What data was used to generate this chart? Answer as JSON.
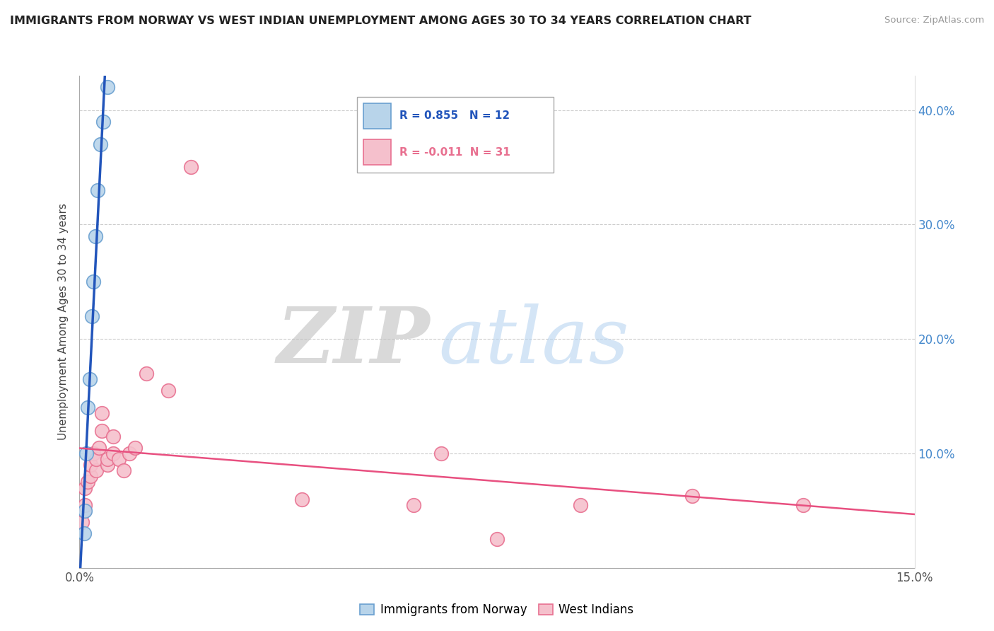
{
  "title": "IMMIGRANTS FROM NORWAY VS WEST INDIAN UNEMPLOYMENT AMONG AGES 30 TO 34 YEARS CORRELATION CHART",
  "source": "Source: ZipAtlas.com",
  "ylabel": "Unemployment Among Ages 30 to 34 years",
  "xlim": [
    0.0,
    0.15
  ],
  "ylim": [
    0.0,
    0.43
  ],
  "xticks": [
    0.0,
    0.05,
    0.1,
    0.15
  ],
  "xtick_labels_bottom": [
    "0.0%",
    "",
    "",
    "15.0%"
  ],
  "yticks": [
    0.0,
    0.1,
    0.2,
    0.3,
    0.4
  ],
  "ytick_labels_left": [
    "",
    "",
    "",
    "",
    ""
  ],
  "ytick_labels_right": [
    "",
    "10.0%",
    "20.0%",
    "30.0%",
    "40.0%"
  ],
  "norway_color": "#b8d4ea",
  "norway_edge_color": "#6aa0d0",
  "west_indian_color": "#f5c0cc",
  "west_indian_edge_color": "#e87090",
  "norway_trend_color": "#2255bb",
  "west_indian_trend_color": "#e85080",
  "norway_R": 0.855,
  "norway_N": 12,
  "west_indian_R": -0.011,
  "west_indian_N": 31,
  "norway_x": [
    0.0008,
    0.001,
    0.0012,
    0.0015,
    0.0018,
    0.0022,
    0.0025,
    0.0028,
    0.0032,
    0.0038,
    0.0042,
    0.005
  ],
  "norway_y": [
    0.03,
    0.05,
    0.1,
    0.14,
    0.165,
    0.22,
    0.25,
    0.29,
    0.33,
    0.37,
    0.39,
    0.42
  ],
  "west_indian_x": [
    0.0005,
    0.0008,
    0.001,
    0.001,
    0.0015,
    0.002,
    0.002,
    0.0025,
    0.003,
    0.003,
    0.0035,
    0.004,
    0.004,
    0.005,
    0.005,
    0.006,
    0.006,
    0.007,
    0.008,
    0.009,
    0.01,
    0.012,
    0.016,
    0.02,
    0.04,
    0.06,
    0.065,
    0.075,
    0.09,
    0.11,
    0.13
  ],
  "west_indian_y": [
    0.04,
    0.05,
    0.055,
    0.07,
    0.075,
    0.08,
    0.09,
    0.1,
    0.085,
    0.095,
    0.105,
    0.12,
    0.135,
    0.09,
    0.095,
    0.1,
    0.115,
    0.095,
    0.085,
    0.1,
    0.105,
    0.17,
    0.155,
    0.35,
    0.06,
    0.055,
    0.1,
    0.025,
    0.055,
    0.063,
    0.055
  ],
  "background_color": "#ffffff",
  "grid_color": "#cccccc",
  "right_axis_color": "#4488cc",
  "legend_label_norway": "Immigrants from Norway",
  "legend_label_wi": "West Indians"
}
